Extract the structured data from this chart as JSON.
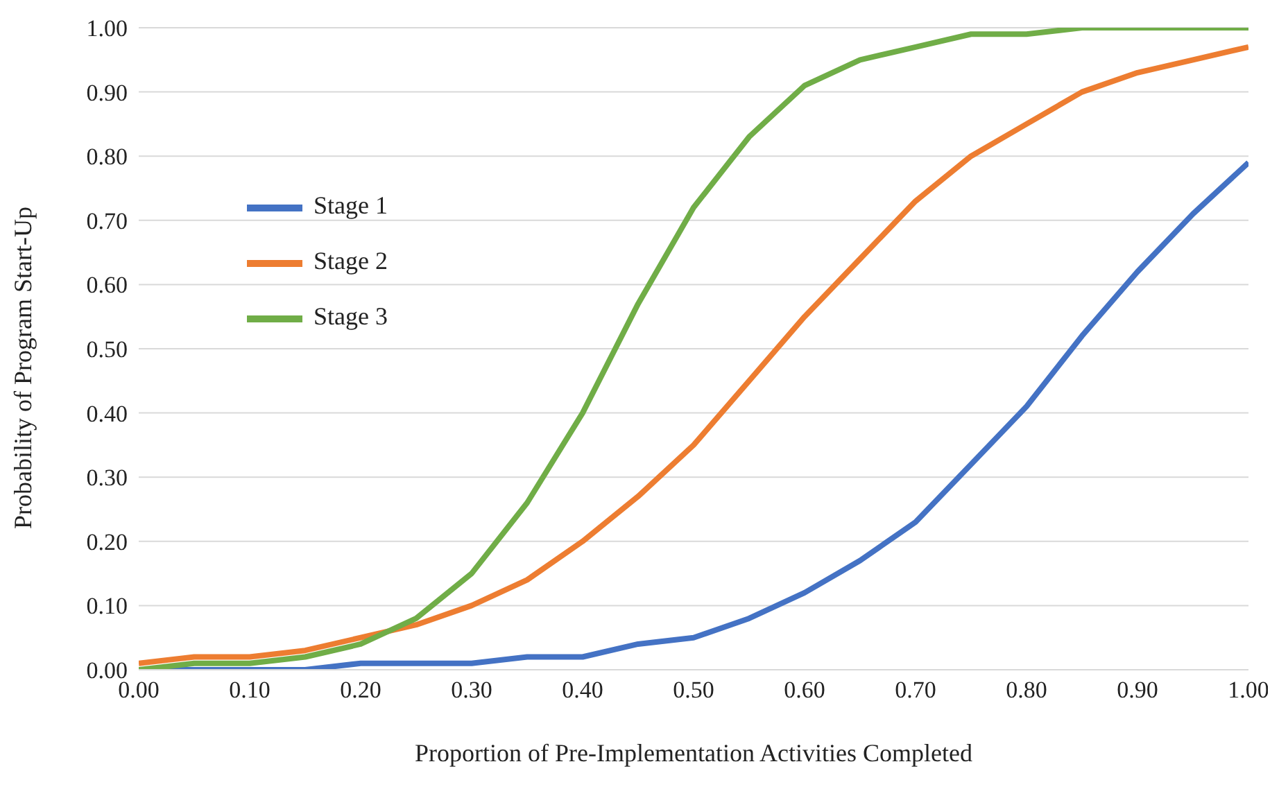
{
  "chart_data": {
    "type": "line",
    "xlabel": "Proportion of Pre-Implementation Activities Completed",
    "ylabel": "Probability of Program Start-Up",
    "x": [
      0,
      0.05,
      0.1,
      0.15,
      0.2,
      0.25,
      0.3,
      0.35,
      0.4,
      0.45,
      0.5,
      0.55,
      0.6,
      0.65,
      0.7,
      0.75,
      0.8,
      0.85,
      0.9,
      0.95,
      1
    ],
    "series": [
      {
        "name": "Stage 1",
        "color": "#4472c4",
        "values": [
          0.0,
          0.0,
          0.0,
          0.0,
          0.01,
          0.01,
          0.01,
          0.02,
          0.02,
          0.04,
          0.05,
          0.08,
          0.12,
          0.17,
          0.23,
          0.32,
          0.41,
          0.52,
          0.62,
          0.71,
          0.79
        ]
      },
      {
        "name": "Stage 2",
        "color": "#ed7d31",
        "values": [
          0.01,
          0.02,
          0.02,
          0.03,
          0.05,
          0.07,
          0.1,
          0.14,
          0.2,
          0.27,
          0.35,
          0.45,
          0.55,
          0.64,
          0.73,
          0.8,
          0.85,
          0.9,
          0.93,
          0.95,
          0.97
        ]
      },
      {
        "name": "Stage 3",
        "color": "#70ad47",
        "values": [
          0.0,
          0.01,
          0.01,
          0.02,
          0.04,
          0.08,
          0.15,
          0.26,
          0.4,
          0.57,
          0.72,
          0.83,
          0.91,
          0.95,
          0.97,
          0.99,
          0.99,
          1.0,
          1.0,
          1.0,
          1.0
        ]
      }
    ],
    "xlim": [
      0,
      1
    ],
    "xticks": [
      {
        "value": 0,
        "label": "0.00"
      },
      {
        "value": 0.1,
        "label": "0.10"
      },
      {
        "value": 0.2,
        "label": "0.20"
      },
      {
        "value": 0.3,
        "label": "0.30"
      },
      {
        "value": 0.4,
        "label": "0.40"
      },
      {
        "value": 0.5,
        "label": "0.50"
      },
      {
        "value": 0.6,
        "label": "0.60"
      },
      {
        "value": 0.7,
        "label": "0.70"
      },
      {
        "value": 0.8,
        "label": "0.80"
      },
      {
        "value": 0.9,
        "label": "0.90"
      },
      {
        "value": 1,
        "label": "1.00"
      }
    ],
    "ylim": [
      0,
      1
    ],
    "yticks": [
      {
        "value": 0,
        "label": "0.00"
      },
      {
        "value": 0.1,
        "label": "0.10"
      },
      {
        "value": 0.2,
        "label": "0.20"
      },
      {
        "value": 0.3,
        "label": "0.30"
      },
      {
        "value": 0.4,
        "label": "0.40"
      },
      {
        "value": 0.5,
        "label": "0.50"
      },
      {
        "value": 0.6,
        "label": "0.60"
      },
      {
        "value": 0.7,
        "label": "0.70"
      },
      {
        "value": 0.8,
        "label": "0.80"
      },
      {
        "value": 0.9,
        "label": "0.90"
      },
      {
        "value": 1,
        "label": "1.00"
      }
    ],
    "grid": "y",
    "legend": "top left",
    "marker": "none",
    "line_style": "solid"
  }
}
